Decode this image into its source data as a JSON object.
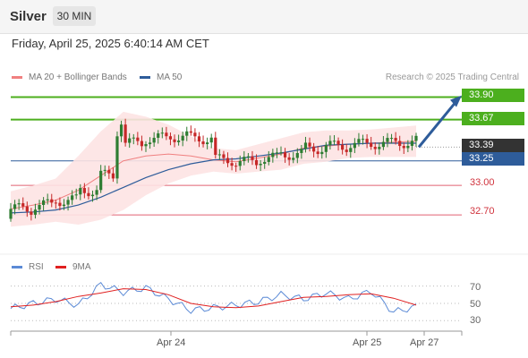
{
  "header": {
    "instrument": "Silver",
    "timeframe": "30 MIN"
  },
  "datetime": "Friday, April 25, 2025 6:40:14 AM CET",
  "legend": {
    "ma20": {
      "label": "MA 20 + Bollinger Bands",
      "color": "#f08080"
    },
    "ma50": {
      "label": "MA 50",
      "color": "#2e5c9a"
    }
  },
  "credit": "Research © 2025 Trading Central",
  "colors": {
    "up": "#2e7d32",
    "down": "#c62828",
    "resistance": "#4caf1e",
    "support": "#e06070",
    "pivot": "#2e5c9a",
    "last": "#333333",
    "arrow": "#2e5c9a"
  },
  "levels": {
    "r2": "33.90",
    "r1": "33.67",
    "last": "33.39",
    "pivot": "33.25",
    "s1": "33.00",
    "s2": "32.70"
  },
  "rsi_legend": {
    "rsi": {
      "label": "RSI",
      "color": "#5b8ad6"
    },
    "ma": {
      "label": "9MA",
      "color": "#e02020"
    }
  },
  "rsi_ticks": [
    "70",
    "50",
    "30"
  ],
  "x_axis": {
    "labels": [
      "Apr 24",
      "Apr 25",
      "Apr 27"
    ]
  },
  "chart_data": [
    {
      "type": "line",
      "title": "Silver",
      "series": [
        {
          "name": "MA 20 + Bollinger Bands",
          "values": [
            32.76,
            32.8,
            32.85,
            32.95,
            33.1,
            33.25,
            33.3,
            33.32,
            33.3,
            33.26,
            33.24,
            33.28,
            33.32,
            33.38,
            33.4,
            33.42,
            33.43,
            33.44,
            33.45
          ]
        },
        {
          "name": "MA 50",
          "values": [
            32.72,
            32.73,
            32.75,
            32.8,
            32.88,
            32.98,
            33.08,
            33.16,
            33.22,
            33.26,
            33.27,
            33.3,
            33.33,
            33.37,
            33.41,
            33.42,
            33.43,
            33.43,
            33.43
          ]
        }
      ],
      "levels": [
        {
          "label": "33.90",
          "value": 33.9
        },
        {
          "label": "33.67",
          "value": 33.67
        },
        {
          "label": "33.39",
          "value": 33.39
        },
        {
          "label": "33.25",
          "value": 33.25
        },
        {
          "label": "33.00",
          "value": 33.0
        },
        {
          "label": "32.70",
          "value": 32.7
        }
      ],
      "ylim": [
        32.5,
        34.05
      ]
    },
    {
      "type": "line",
      "title": "RSI",
      "series": [
        {
          "name": "RSI",
          "values": [
            44,
            50,
            55,
            48,
            72,
            63,
            68,
            55,
            42,
            45,
            48,
            52,
            60,
            55,
            62,
            55,
            64,
            40,
            46
          ]
        },
        {
          "name": "9MA",
          "values": [
            46,
            48,
            52,
            58,
            62,
            67,
            66,
            60,
            50,
            46,
            45,
            47,
            52,
            57,
            58,
            60,
            61,
            56,
            48
          ]
        }
      ],
      "yticks": [
        70,
        50,
        30
      ],
      "ylim": [
        22,
        80
      ]
    }
  ]
}
